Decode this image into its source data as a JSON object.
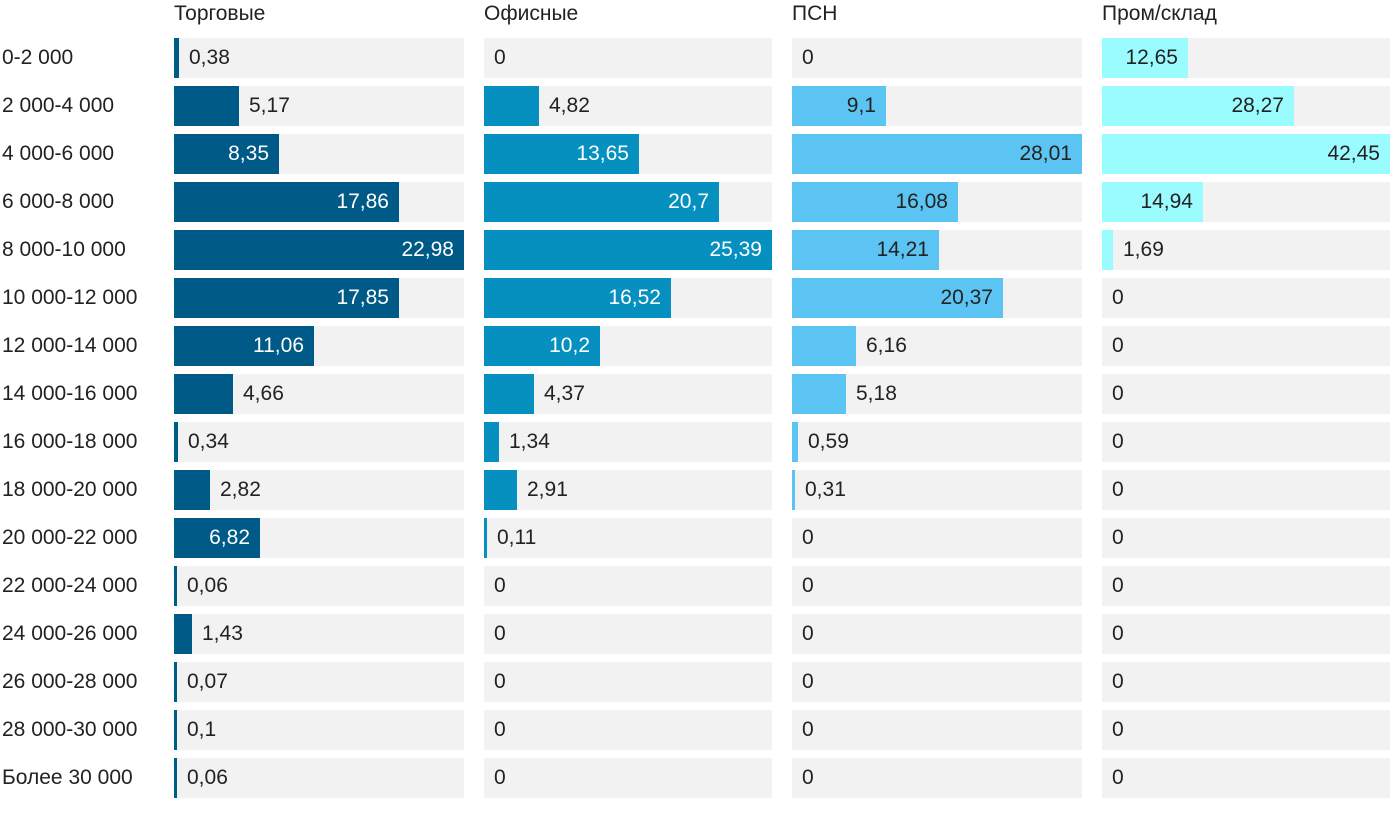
{
  "chart_data": {
    "type": "bar",
    "orientation": "horizontal",
    "layout": "small-multiples",
    "categories": [
      "0-2 000",
      "2 000-4 000",
      "4 000-6 000",
      "6 000-8 000",
      "8 000-10 000",
      "10 000-12 000",
      "12 000-14 000",
      "14 000-16 000",
      "16 000-18 000",
      "18 000-20 000",
      "20 000-22 000",
      "22 000-24 000",
      "24 000-26 000",
      "26 000-28 000",
      "28 000-30 000",
      "Более 30 000"
    ],
    "series": [
      {
        "name": "Торговые",
        "color": "#005a87",
        "label_color": "#ffffff",
        "values": [
          0.38,
          5.17,
          8.35,
          17.86,
          22.98,
          17.85,
          11.06,
          4.66,
          0.34,
          2.82,
          6.82,
          0.06,
          1.43,
          0.07,
          0.1,
          0.06
        ],
        "labels": [
          "0,38",
          "5,17",
          "8,35",
          "17,86",
          "22,98",
          "17,85",
          "11,06",
          "4,66",
          "0,34",
          "2,82",
          "6,82",
          "0,06",
          "1,43",
          "0,07",
          "0,1",
          "0,06"
        ],
        "xlim": [
          0,
          22.98
        ]
      },
      {
        "name": "Офисные",
        "color": "#0590bf",
        "label_color": "#ffffff",
        "values": [
          0,
          4.82,
          13.65,
          20.7,
          25.39,
          16.52,
          10.2,
          4.37,
          1.34,
          2.91,
          0.11,
          0,
          0,
          0,
          0,
          0
        ],
        "labels": [
          "0",
          "4,82",
          "13,65",
          "20,7",
          "25,39",
          "16,52",
          "10,2",
          "4,37",
          "1,34",
          "2,91",
          "0,11",
          "0",
          "0",
          "0",
          "0",
          "0"
        ],
        "xlim": [
          0,
          25.39
        ]
      },
      {
        "name": "ПСН",
        "color": "#5bc4f2",
        "label_color": "#222222",
        "values": [
          0,
          9.1,
          28.01,
          16.08,
          14.21,
          20.37,
          6.16,
          5.18,
          0.59,
          0.31,
          0,
          0,
          0,
          0,
          0,
          0
        ],
        "labels": [
          "0",
          "9,1",
          "28,01",
          "16,08",
          "14,21",
          "20,37",
          "6,16",
          "5,18",
          "0,59",
          "0,31",
          "0",
          "0",
          "0",
          "0",
          "0",
          "0"
        ],
        "xlim": [
          0,
          28.01
        ]
      },
      {
        "name": "Пром/склад",
        "color": "#9bfcff",
        "label_color": "#222222",
        "values": [
          12.65,
          28.27,
          42.45,
          14.94,
          1.69,
          0,
          0,
          0,
          0,
          0,
          0,
          0,
          0,
          0,
          0,
          0
        ],
        "labels": [
          "12,65",
          "28,27",
          "42,45",
          "14,94",
          "1,69",
          "0",
          "0",
          "0",
          "0",
          "0",
          "0",
          "0",
          "0",
          "0",
          "0",
          "0"
        ],
        "xlim": [
          0,
          42.45
        ]
      }
    ],
    "grid": false,
    "legend": "none"
  }
}
